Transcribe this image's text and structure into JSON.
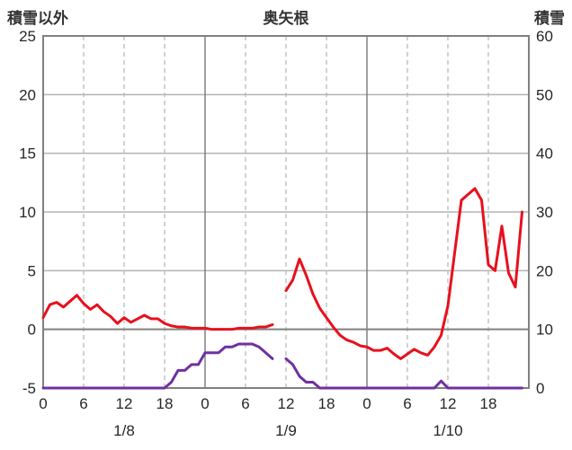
{
  "header": {
    "left_axis_title": "積雪以外",
    "title": "奥矢根",
    "right_axis_title": "積雪"
  },
  "chart_data": {
    "type": "line",
    "title": "奥矢根",
    "left_axis_label": "積雪以外",
    "right_axis_label": "積雪",
    "x_max": 72,
    "left_ylim": [
      -5,
      25
    ],
    "right_ylim": [
      0,
      60
    ],
    "left_ticks": [
      25,
      20,
      15,
      10,
      5,
      0,
      -5
    ],
    "right_ticks": [
      60,
      50,
      40,
      30,
      20,
      10,
      0
    ],
    "x_ticks": [
      {
        "hour": 0,
        "label": "0"
      },
      {
        "hour": 6,
        "label": "6"
      },
      {
        "hour": 12,
        "label": "12"
      },
      {
        "hour": 18,
        "label": "18"
      },
      {
        "hour": 24,
        "label": "0"
      },
      {
        "hour": 30,
        "label": "6"
      },
      {
        "hour": 36,
        "label": "12"
      },
      {
        "hour": 42,
        "label": "18"
      },
      {
        "hour": 48,
        "label": "0"
      },
      {
        "hour": 54,
        "label": "6"
      },
      {
        "hour": 60,
        "label": "12"
      },
      {
        "hour": 66,
        "label": "18"
      }
    ],
    "date_labels": [
      {
        "hour": 12,
        "label": "1/8"
      },
      {
        "hour": 36,
        "label": "1/9"
      },
      {
        "hour": 60,
        "label": "1/10"
      }
    ],
    "grid": {
      "h_solid": [
        20,
        15,
        10,
        5
      ],
      "zero": 0,
      "v_solid": [
        24,
        48
      ],
      "v_dashed": [
        6,
        12,
        18,
        30,
        36,
        42,
        54,
        60,
        66
      ]
    },
    "colors": {
      "series_red": "#e8101c",
      "series_purple": "#7030a0",
      "grid": "#b3b3b3",
      "frame": "#808080",
      "zero_line": "#808080",
      "text": "#262626"
    },
    "series": [
      {
        "name": "積雪以外",
        "axis": "left",
        "color_key": "series_red",
        "values": [
          1.0,
          2.1,
          2.3,
          1.9,
          2.4,
          2.9,
          2.2,
          1.7,
          2.1,
          1.5,
          1.1,
          0.5,
          1.0,
          0.6,
          0.9,
          1.2,
          0.9,
          0.9,
          0.5,
          0.3,
          0.2,
          0.2,
          0.1,
          0.1,
          0.1,
          0.0,
          0.0,
          0.0,
          0.0,
          0.1,
          0.1,
          0.1,
          0.2,
          0.2,
          0.4,
          null,
          3.3,
          4.2,
          6.0,
          4.6,
          3.0,
          1.8,
          1.0,
          0.2,
          -0.5,
          -0.9,
          -1.1,
          -1.4,
          -1.5,
          -1.8,
          -1.8,
          -1.6,
          -2.1,
          -2.5,
          -2.1,
          -1.7,
          -2.0,
          -2.2,
          -1.5,
          -0.5,
          2.0,
          6.5,
          11.0,
          11.5,
          12.0,
          11.0,
          5.5,
          5.0,
          8.8,
          4.8,
          3.6,
          10.0
        ]
      },
      {
        "name": "積雪",
        "axis": "right",
        "color_key": "series_purple",
        "values": [
          0,
          0,
          0,
          0,
          0,
          0,
          0,
          0,
          0,
          0,
          0,
          0,
          0,
          0,
          0,
          0,
          0,
          0,
          0,
          1,
          3,
          3,
          4,
          4,
          6,
          6,
          6,
          7,
          7,
          7.5,
          7.5,
          7.5,
          7,
          6,
          5,
          null,
          5,
          4,
          2,
          1,
          1,
          0,
          0,
          0,
          0,
          0,
          0,
          0,
          0,
          0,
          0,
          0,
          0,
          0,
          0,
          0,
          0,
          0,
          0,
          1.2,
          0,
          0,
          0,
          0,
          0,
          0,
          0,
          0,
          0,
          0,
          0,
          0
        ]
      }
    ]
  }
}
